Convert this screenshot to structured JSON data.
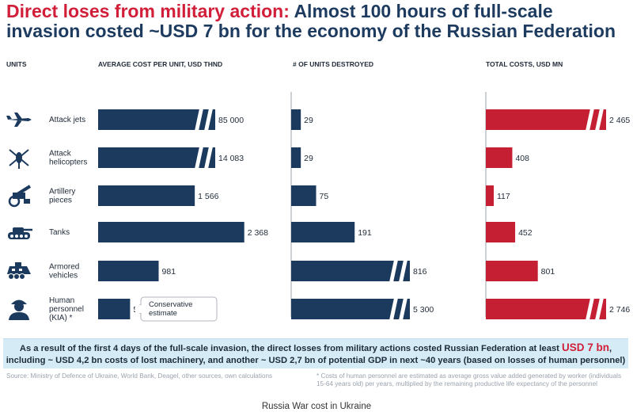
{
  "title_part1": "Direct loses from military action:",
  "title_part2": "Almost 100 hours of full-scale invasion costed ~USD 7 bn for the economy of the Russian Federation",
  "headers": {
    "units": "UNITS",
    "avg_cost": "AVERAGE COST PER UNIT, USD THND",
    "destroyed": "# OF UNITS DESTROYED",
    "total": "TOTAL COSTS, USD MN"
  },
  "chart_data": {
    "type": "bar",
    "orientation": "horizontal",
    "categories": [
      "Attack jets",
      "Attack helicopters",
      "Artillery pieces",
      "Tanks",
      "Armored vehicles",
      "Human personnel (KIA) *"
    ],
    "icons": [
      "jet-icon",
      "helicopter-icon",
      "artillery-icon",
      "tank-icon",
      "armored-vehicle-icon",
      "soldier-icon"
    ],
    "series": [
      {
        "name": "AVERAGE COST PER UNIT, USD THND",
        "values": [
          85000,
          14083,
          1566,
          2368,
          981,
          518
        ],
        "labels": [
          "85 000",
          "14 083",
          "1 566",
          "2 368",
          "981",
          "518"
        ],
        "broken": [
          true,
          true,
          false,
          false,
          false,
          false
        ],
        "color": "#1c3a5e"
      },
      {
        "name": "# OF UNITS DESTROYED",
        "values": [
          29,
          29,
          75,
          191,
          816,
          5300
        ],
        "labels": [
          "29",
          "29",
          "75",
          "191",
          "816",
          "5 300"
        ],
        "broken": [
          false,
          false,
          false,
          false,
          true,
          true
        ],
        "color": "#1c3a5e"
      },
      {
        "name": "TOTAL COSTS, USD MN",
        "values": [
          2465,
          408,
          117,
          452,
          801,
          2746
        ],
        "labels": [
          "2 465",
          "408",
          "117",
          "452",
          "801",
          "2 746"
        ],
        "broken": [
          true,
          false,
          false,
          false,
          false,
          true
        ],
        "color": "#c41f33"
      }
    ],
    "callout": "Conservative estimate"
  },
  "banner": {
    "text1": "As a result of the first 4 days of the full-scale invasion, the direct losses from military actions costed Russian Federation at least",
    "highlight": "USD 7 bn",
    "text2": ", including ~ USD 4,2 bn costs of lost machinery, and another ~ USD 2,7 bn of potential GDP in next ~40 years (based on losses of human personnel)"
  },
  "source": "Source: Ministry of Defence of Ukraine, World Bank, Deagel, other sources, own calculations",
  "footnote": "* Costs of human personnel are estimated as average gross value added generated by worker (individuals 15-64 years old) per years, multiplied by the remaining productive life expectancy of the personnel",
  "caption": "Russia War cost in Ukraine"
}
